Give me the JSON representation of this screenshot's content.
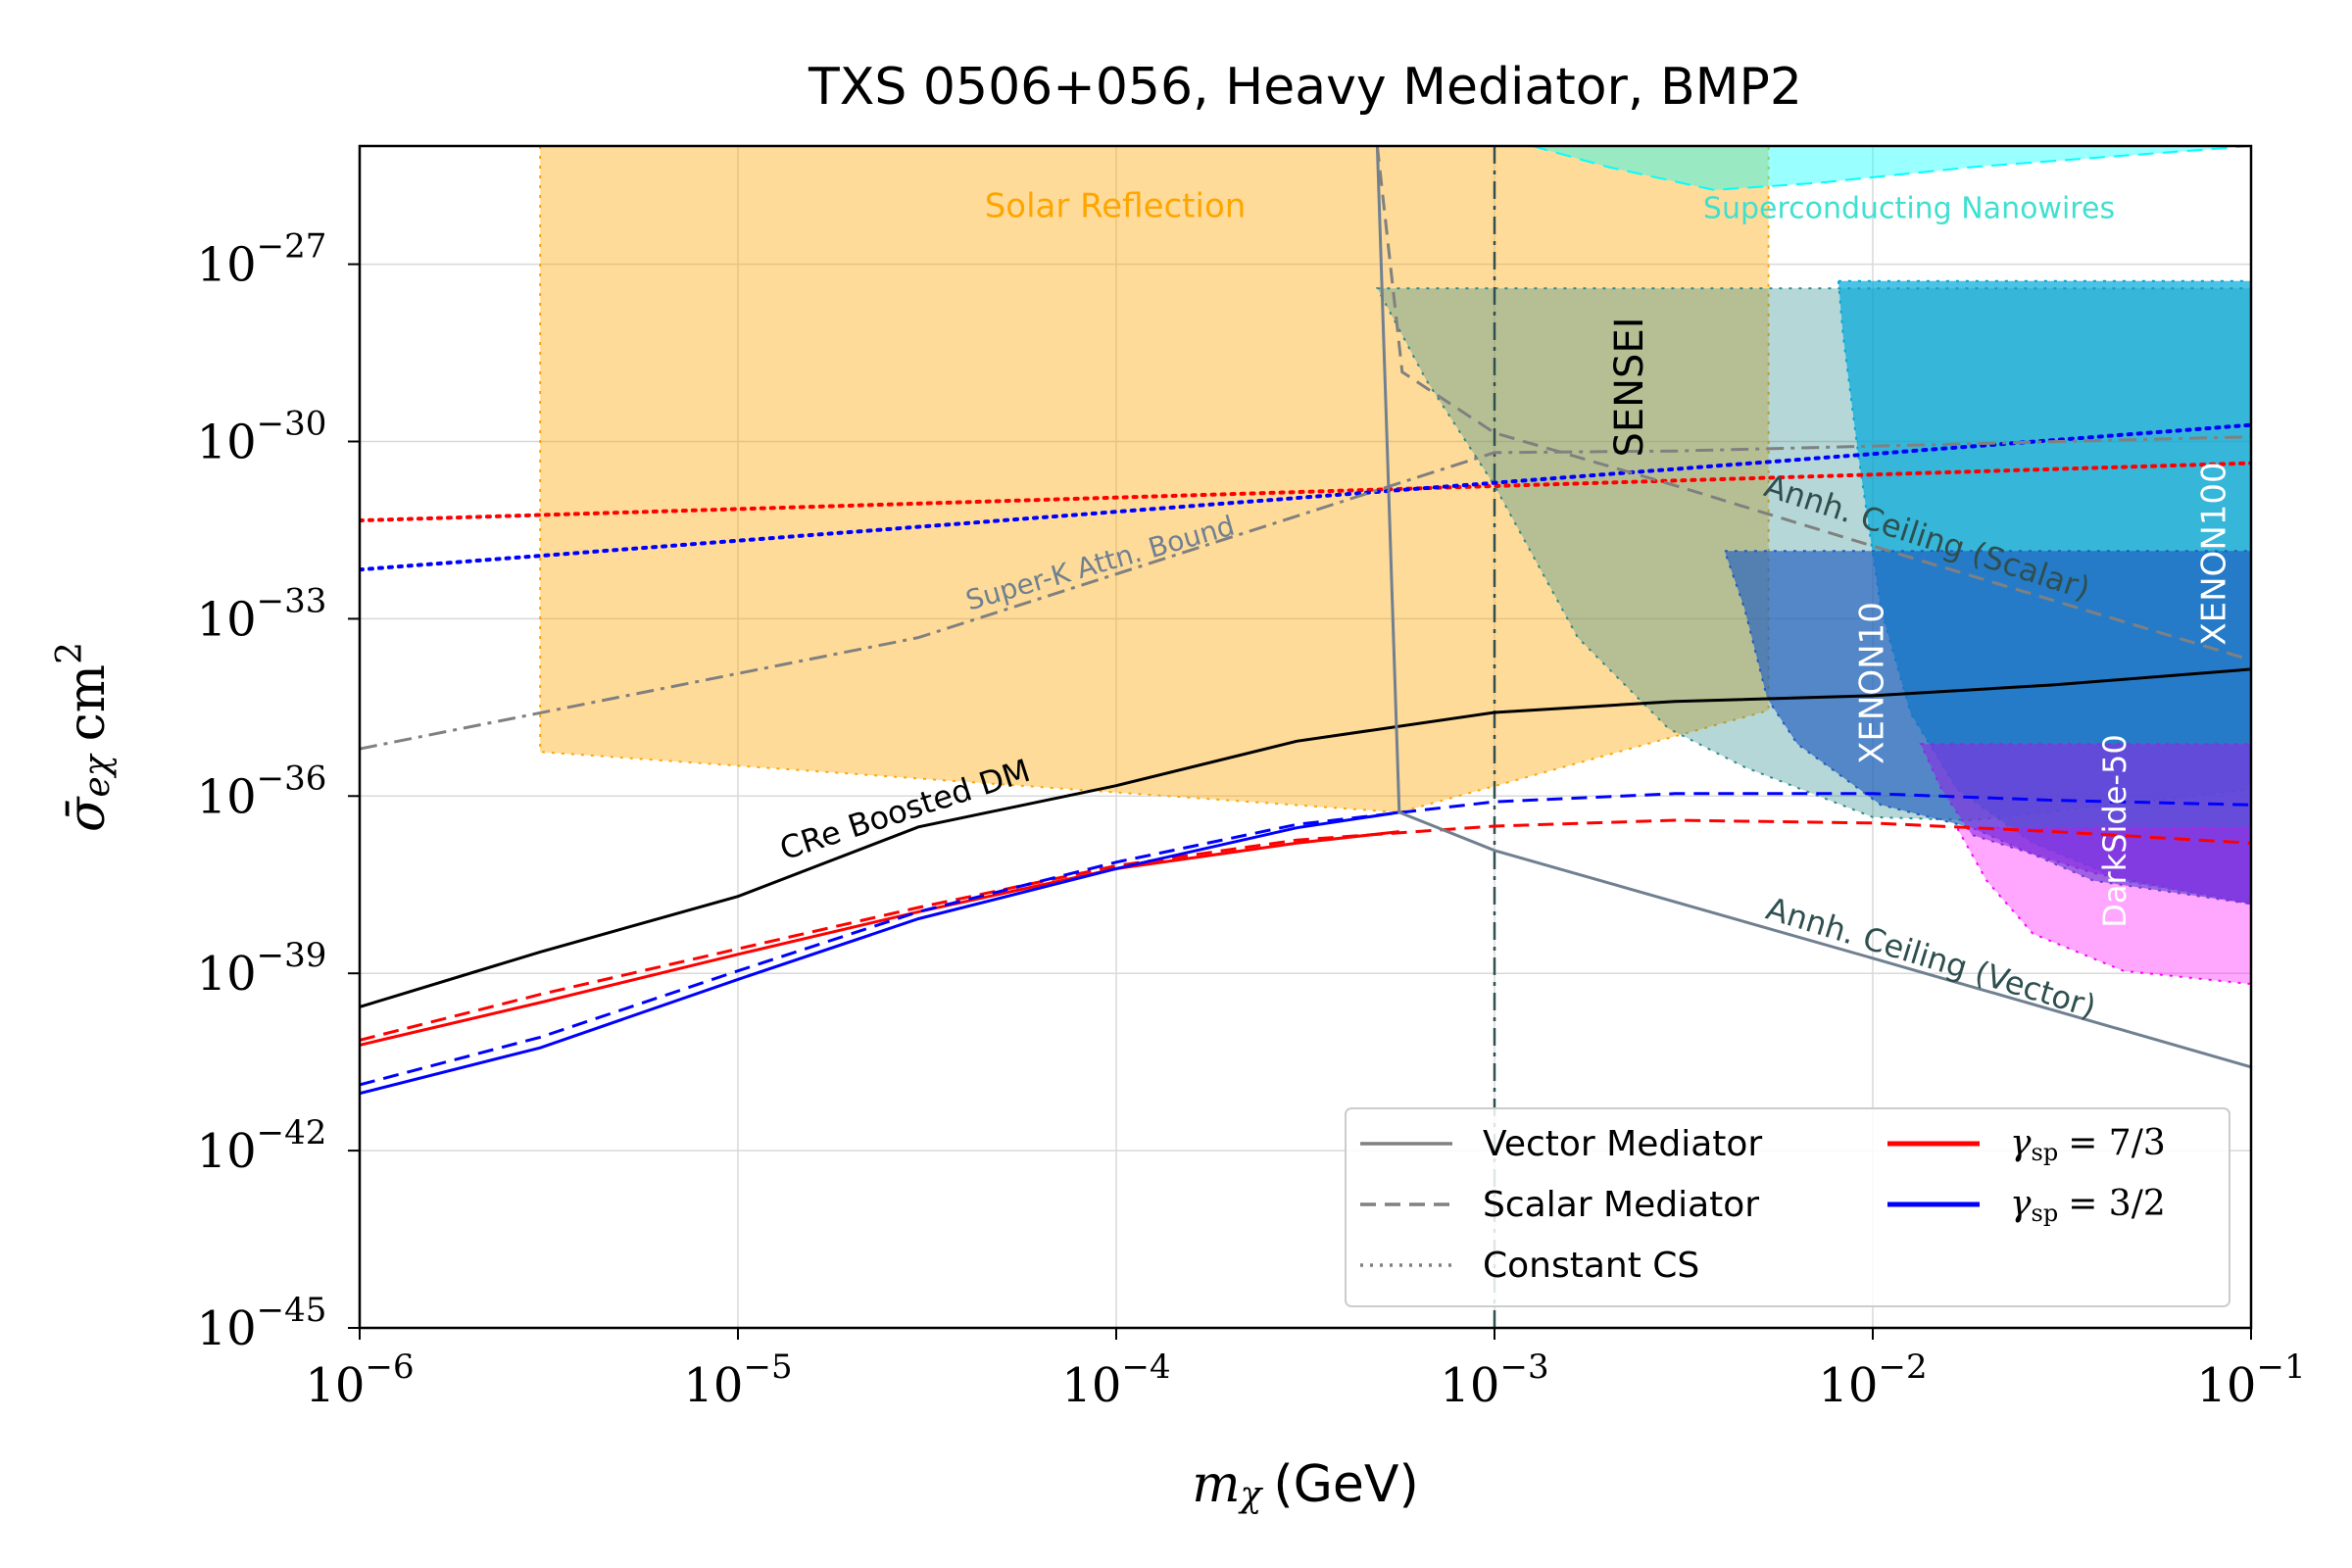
{
  "chart_data": {
    "type": "line",
    "title": "TXS 0506+056, Heavy Mediator, BMP2",
    "xlabel": {
      "symbol": "m",
      "subscript": "χ",
      "text": "(GeV)"
    },
    "ylabel": {
      "symbol": "σ̄",
      "subscript": "eχ",
      "text": "cm",
      "superscript": "2"
    },
    "xscale": "log",
    "yscale": "log",
    "xlim": [
      1e-06,
      0.1
    ],
    "ylim": [
      1e-45,
      1e-25
    ],
    "xticks": [
      {
        "value": 1e-06,
        "label": "10",
        "exponent": "−6"
      },
      {
        "value": 1e-05,
        "label": "10",
        "exponent": "−5"
      },
      {
        "value": 0.0001,
        "label": "10",
        "exponent": "−4"
      },
      {
        "value": 0.001,
        "label": "10",
        "exponent": "−3"
      },
      {
        "value": 0.01,
        "label": "10",
        "exponent": "−2"
      },
      {
        "value": 0.1,
        "label": "10",
        "exponent": "−1"
      }
    ],
    "yticks": [
      {
        "value": 1e-45,
        "label": "10",
        "exponent": "−45"
      },
      {
        "value": 1e-42,
        "label": "10",
        "exponent": "−42"
      },
      {
        "value": 1e-39,
        "label": "10",
        "exponent": "−39"
      },
      {
        "value": 1e-36,
        "label": "10",
        "exponent": "−36"
      },
      {
        "value": 1e-33,
        "label": "10",
        "exponent": "−33"
      },
      {
        "value": 1e-30,
        "label": "10",
        "exponent": "−30"
      },
      {
        "value": 1e-27,
        "label": "10",
        "exponent": "−27"
      }
    ],
    "grid": true,
    "regions": [
      {
        "color": "#ffa500",
        "opacity": 0.4,
        "edge": "dotted",
        "x": [
          3e-06,
          3e-06,
          0.00056,
          0.0053,
          0.0053
        ],
        "y": [
          1e-25,
          5.6e-36,
          5.3e-37,
          2.8e-35,
          1e-25
        ]
      },
      {
        "color": "#2e8b8b",
        "opacity": 0.35,
        "edge": "dotted",
        "x": [
          0.00049,
          0.1,
          0.1,
          0.0183,
          0.01,
          0.00458,
          0.00288,
          0.00166,
          0.001,
          0.00066
        ],
        "y": [
          3.9e-28,
          3.9e-28,
          1.3e-36,
          3.9e-37,
          4.4e-37,
          3.1e-36,
          1.4e-35,
          4.8e-34,
          1.8e-31,
          1.1e-29
        ]
      },
      {
        "color": "#00a8d8",
        "opacity": 0.7,
        "edge": "dotted",
        "x": [
          0.00811,
          0.1,
          0.1,
          0.046,
          0.0265,
          0.0167,
          0.0126,
          0.0105,
          0.00916,
          0.00834
        ],
        "y": [
          5.2e-28,
          5.2e-28,
          1.5e-38,
          3.7e-38,
          1.6e-37,
          1.3e-36,
          2.5e-35,
          1.5e-33,
          5.8e-31,
          6.5e-29
        ]
      },
      {
        "color": "#1f5cc0",
        "opacity": 0.65,
        "edge": "dotted",
        "x": [
          0.00406,
          0.1,
          0.1,
          0.0383,
          0.0183,
          0.0105,
          0.00632,
          0.00526,
          0.00458
        ],
        "y": [
          1.4e-32,
          1.4e-32,
          1.5e-38,
          3.7e-38,
          2.9e-37,
          7.1e-37,
          7.6e-36,
          4.5e-35,
          1.5e-33
        ]
      },
      {
        "color": "#ff00ff",
        "opacity": 0.35,
        "edge": "dotted",
        "x": [
          0.0167,
          0.1,
          0.1,
          0.046,
          0.0265,
          0.02
        ],
        "y": [
          2.9e-37,
          2.9e-37,
          6.6e-40,
          1.1e-39,
          4.7e-39,
          3.7e-38
        ]
      },
      {
        "color": "#8a2be2",
        "opacity": 0.6,
        "edge": "dotted",
        "x": [
          0.0134,
          0.1,
          0.1,
          0.0383,
          0.0183,
          0.0152
        ],
        "y": [
          7.6e-36,
          7.6e-36,
          1.5e-38,
          5e-38,
          2.2e-37,
          1.3e-36
        ]
      },
      {
        "color": "#00ffff",
        "opacity": 0.4,
        "edge": "dashed",
        "x": [
          0.00126,
          0.002,
          0.00381,
          0.00726,
          0.0183,
          0.1
        ],
        "y": [
          1e-25,
          4.4e-26,
          1.8e-26,
          2.4e-26,
          4.4e-26,
          1e-25
        ]
      }
    ],
    "series": [
      {
        "color": "#000000",
        "style": "solid",
        "x": [
          1e-06,
          3e-06,
          1e-05,
          3e-05,
          0.0001,
          0.0003,
          0.001,
          0.003,
          0.01,
          0.03,
          0.1
        ],
        "values": [
          2.7e-40,
          2.3e-39,
          2e-38,
          3e-37,
          1.5e-36,
          8.5e-36,
          2.6e-35,
          4e-35,
          5e-35,
          7.6e-35,
          1.4e-34
        ]
      },
      {
        "color": "#ff0000",
        "style": "solid",
        "x": [
          1e-06,
          3e-06,
          1e-05,
          3e-05,
          0.0001,
          0.0003,
          0.00056
        ],
        "values": [
          6.1e-41,
          3.2e-40,
          2.1e-39,
          1.1e-38,
          5.9e-38,
          1.6e-37,
          2.5e-37
        ]
      },
      {
        "color": "#ff0000",
        "style": "dashed",
        "x": [
          1e-06,
          3e-06,
          1e-05,
          3e-05,
          0.0001,
          0.0003,
          0.001,
          0.003,
          0.01,
          0.03,
          0.1
        ],
        "values": [
          7.4e-41,
          4.4e-40,
          2.6e-39,
          1.3e-38,
          6.6e-38,
          1.8e-37,
          3.1e-37,
          3.9e-37,
          3.5e-37,
          2.5e-37,
          1.6e-37
        ]
      },
      {
        "color": "#0000ff",
        "style": "solid",
        "x": [
          1e-06,
          3e-06,
          1e-05,
          3e-05,
          0.0001,
          0.0003,
          0.00056
        ],
        "values": [
          9.3e-42,
          5.5e-41,
          7.9e-40,
          8.4e-39,
          5.9e-38,
          2.9e-37,
          5.3e-37
        ]
      },
      {
        "color": "#0000ff",
        "style": "dashed",
        "x": [
          1e-06,
          3e-06,
          1e-05,
          3e-05,
          0.0001,
          0.0003,
          0.001,
          0.003,
          0.01,
          0.03,
          0.1
        ],
        "values": [
          1.3e-41,
          8.3e-41,
          1.1e-39,
          1.1e-38,
          7.6e-38,
          3.3e-37,
          8e-37,
          1.1e-36,
          1.1e-36,
          8.5e-37,
          7.1e-37
        ]
      },
      {
        "color": "#ff0000",
        "style": "dotted",
        "x": [
          1e-06,
          0.1
        ],
        "values": [
          4.6e-32,
          4.3e-31
        ]
      },
      {
        "color": "#0000ff",
        "style": "dotted",
        "x": [
          1e-06,
          0.1
        ],
        "values": [
          6.8e-33,
          1.9e-30
        ]
      },
      {
        "color": "#808080",
        "style": "dashdot",
        "x": [
          1e-06,
          3e-05,
          0.001,
          0.003,
          0.1
        ],
        "values": [
          6.3e-36,
          4.8e-34,
          6.5e-31,
          6.9e-31,
          1.2e-30
        ]
      },
      {
        "color": "#708090",
        "style": "solid",
        "x": [
          0.00049,
          0.00056,
          0.001,
          0.01,
          0.1
        ],
        "values": [
          1e-25,
          5.3e-37,
          1.2e-37,
          1.8e-39,
          2.6e-41
        ]
      },
      {
        "color": "#808080",
        "style": "dashed",
        "x": [
          0.00049,
          0.00057,
          0.001,
          0.003,
          0.01,
          0.1
        ],
        "values": [
          1e-25,
          1.5e-29,
          1.4e-30,
          1.8e-31,
          1.7e-32,
          2e-34
        ]
      }
    ],
    "vlines": [
      {
        "x": 0.001,
        "color": "#2f4f4f",
        "style": "dashdot"
      }
    ],
    "annotations": [
      {
        "text": "Solar Reflection",
        "color": "#ffa500"
      },
      {
        "text": "Superconducting Nanowires",
        "color": "#40e0d0"
      },
      {
        "text": "SENSEI",
        "color": "#000000"
      },
      {
        "text": "XENON10",
        "color": "#ffffff"
      },
      {
        "text": "XENON100",
        "color": "#ffffff"
      },
      {
        "text": "DarkSide-50",
        "color": "#ffffff"
      },
      {
        "text": "CRe Boosted DM",
        "color": "#000000"
      },
      {
        "text": "Super-K Attn. Bound",
        "color": "#708090"
      },
      {
        "text": "Annh. Ceiling (Scalar)",
        "color": "#2f4f4f"
      },
      {
        "text": "Annh. Ceiling (Vector)",
        "color": "#2f4f4f"
      }
    ],
    "legend": {
      "position": "lower right",
      "entries": [
        {
          "label": "Vector Mediator",
          "color": "#808080",
          "style": "solid"
        },
        {
          "label": "Scalar Mediator",
          "color": "#808080",
          "style": "dashed"
        },
        {
          "label": "Constant CS",
          "color": "#808080",
          "style": "dotted"
        },
        {
          "label": "γ",
          "label_sub": "sp",
          "label_rest": "= 7/3",
          "color": "#ff0000",
          "style": "solid"
        },
        {
          "label": "γ",
          "label_sub": "sp",
          "label_rest": "= 3/2",
          "color": "#0000ff",
          "style": "solid"
        }
      ]
    }
  }
}
